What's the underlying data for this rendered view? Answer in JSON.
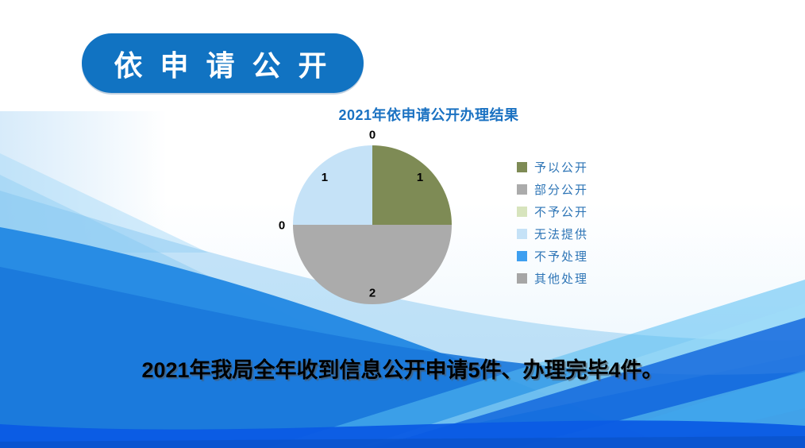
{
  "slide": {
    "badge_label": "依 申 请 公 开",
    "summary": "2021年我局全年收到信息公开申请5件、办理完毕4件。"
  },
  "colors": {
    "badge_bg": "#1173C2",
    "badge_text": "#FFFFFF",
    "title_text": "#1B72C2",
    "legend_text": "#2E75B6",
    "summary_text": "#000000",
    "pie_label_text": "#000000",
    "wave_main": "#2489E3",
    "wave_deep": "#0B5BE4",
    "wave_light": "#8FCDF4"
  },
  "chart_data": {
    "type": "pie",
    "title": "2021年依申请公开办理结果",
    "categories": [
      "予以公开",
      "部分公开",
      "不予公开",
      "无法提供",
      "不予处理",
      "其他处理"
    ],
    "values": [
      1,
      2,
      0,
      1,
      0,
      0
    ],
    "colors": [
      "#7E8B55",
      "#ABABAB",
      "#D7E4BD",
      "#C5E2F7",
      "#3E9FF0",
      "#A6A6A6"
    ],
    "start_angle_deg": 0,
    "direction": "clockwise",
    "legend_position": "right",
    "data_labels_shown": true,
    "zero_labels_outside": true
  }
}
